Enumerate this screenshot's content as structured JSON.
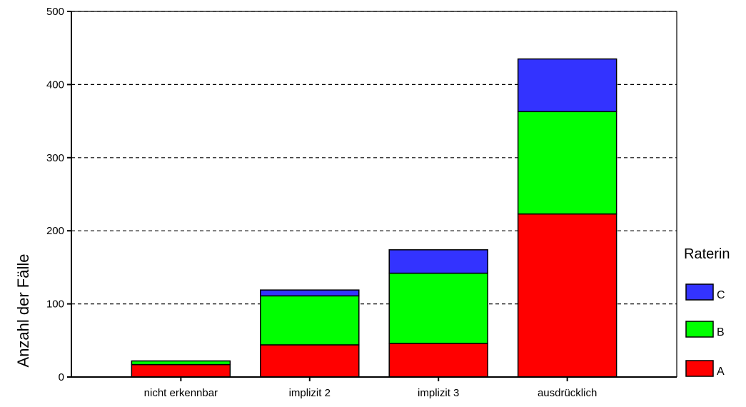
{
  "chart_data": {
    "type": "bar",
    "stacked": true,
    "categories": [
      "nicht erkennbar",
      "implizit 2",
      "implizit 3",
      "ausdrücklich"
    ],
    "series": [
      {
        "name": "A",
        "color": "#ff0000",
        "values": [
          17,
          44,
          46,
          223
        ]
      },
      {
        "name": "B",
        "color": "#00ff00",
        "values": [
          5,
          67,
          96,
          140
        ]
      },
      {
        "name": "C",
        "color": "#3333ff",
        "values": [
          0,
          8,
          32,
          72
        ]
      }
    ],
    "ylabel": "Anzahl der Fälle",
    "ylim": [
      0,
      500
    ],
    "yticks": [
      0,
      100,
      200,
      300,
      400,
      500
    ],
    "grid": "horizontal-dashed",
    "legend": {
      "title": "Raterin",
      "placement": "right",
      "order": [
        "C",
        "B",
        "A"
      ]
    }
  }
}
